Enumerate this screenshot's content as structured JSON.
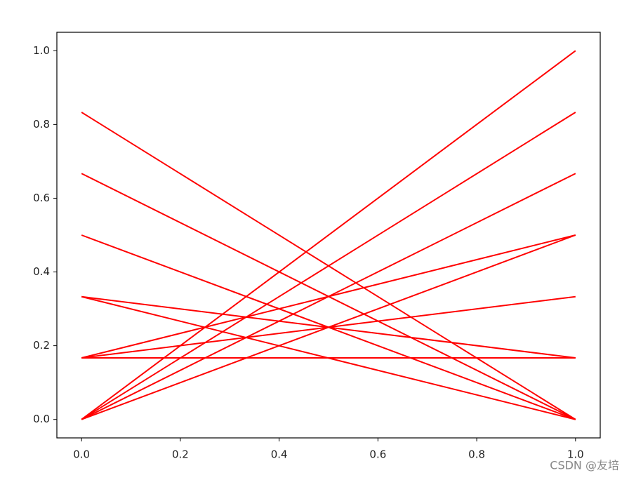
{
  "chart_data": {
    "type": "line",
    "x": [
      0,
      1
    ],
    "series": [
      {
        "color": "#ff0000",
        "values": [
          0,
          1
        ]
      },
      {
        "color": "#ff0000",
        "values": [
          0,
          0.833
        ]
      },
      {
        "color": "#ff0000",
        "values": [
          0,
          0.667
        ]
      },
      {
        "color": "#ff0000",
        "values": [
          0,
          0.5
        ]
      },
      {
        "color": "#ff0000",
        "values": [
          0.167,
          0.5
        ]
      },
      {
        "color": "#ff0000",
        "values": [
          0.167,
          0.333
        ]
      },
      {
        "color": "#ff0000",
        "values": [
          0.167,
          0.167
        ]
      },
      {
        "color": "#ff0000",
        "values": [
          0.333,
          0.167
        ]
      },
      {
        "color": "#ff0000",
        "values": [
          0.333,
          0
        ]
      },
      {
        "color": "#ff0000",
        "values": [
          0.5,
          0
        ]
      },
      {
        "color": "#ff0000",
        "values": [
          0.667,
          0
        ]
      },
      {
        "color": "#ff0000",
        "values": [
          0.833,
          0
        ]
      }
    ],
    "xlim": [
      -0.05,
      1.05
    ],
    "ylim": [
      -0.05,
      1.05
    ],
    "xticks": [
      {
        "value": 0,
        "label": "0.0"
      },
      0.2,
      0.4,
      0.6,
      0.8,
      {
        "value": 1,
        "label": "1.0"
      }
    ],
    "yticks": [
      {
        "value": 0,
        "label": "0.0"
      },
      0.2,
      0.4,
      0.6,
      0.8,
      {
        "value": 1,
        "label": "1.0"
      }
    ],
    "grid": false,
    "watermark": "CSDN @友培"
  }
}
